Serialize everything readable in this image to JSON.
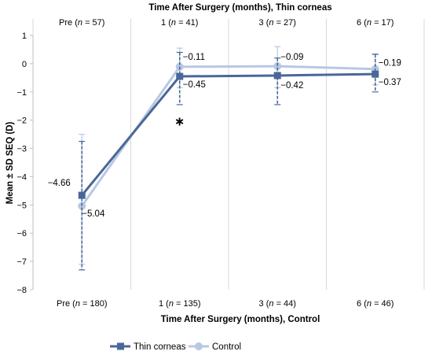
{
  "chart_data": {
    "type": "line",
    "title": "",
    "top_axis_title": "Time After Surgery (months), Thin corneas",
    "xlabel": "Time After Surgery (months), Control",
    "ylabel": "Mean ± SD SEQ (D)",
    "ylim": [
      -8,
      1
    ],
    "y_ticks": [
      "1",
      "0",
      "−1",
      "−2",
      "−3",
      "−4",
      "−5",
      "−6",
      "−7",
      "−8"
    ],
    "categories_top": [
      {
        "a": "Pre (",
        "n": "n",
        "b": " = 57)"
      },
      {
        "a": "1 (",
        "n": "n",
        "b": " = 41)"
      },
      {
        "a": "3 (",
        "n": "n",
        "b": " = 27)"
      },
      {
        "a": "6 (",
        "n": "n",
        "b": " = 17)"
      }
    ],
    "categories_bottom": [
      {
        "a": "Pre (",
        "n": "n",
        "b": " = 180)"
      },
      {
        "a": "1 (",
        "n": "n",
        "b": " = 135)"
      },
      {
        "a": "3 (",
        "n": "n",
        "b": " = 44)"
      },
      {
        "a": "6 (",
        "n": "n",
        "b": " = 46)"
      }
    ],
    "grid": "vertical",
    "legend_position": "bottom",
    "significance_marker": {
      "text": "∗",
      "category_index": 1,
      "y": -2.0
    },
    "series": [
      {
        "name": "Thin corneas",
        "color": "#4a6799",
        "marker": "square",
        "error_style": "dashed",
        "values": [
          -4.66,
          -0.45,
          -0.42,
          -0.37
        ],
        "labels": [
          "−4.66",
          "−0.45",
          "−0.42",
          "−0.37"
        ],
        "err_low": [
          -7.3,
          -1.45,
          -1.45,
          -1.0
        ],
        "err_high": [
          -2.75,
          0.4,
          0.2,
          0.33
        ]
      },
      {
        "name": "Control",
        "color": "#b8c8e2",
        "marker": "circle",
        "error_style": "solid",
        "values": [
          -5.04,
          -0.11,
          -0.09,
          -0.19
        ],
        "labels": [
          "−5.04",
          "−0.11",
          "−0.09",
          "−0.19"
        ],
        "err_low": [
          -7.1,
          -0.85,
          -0.85,
          -0.75
        ],
        "err_high": [
          -2.5,
          0.55,
          0.6,
          0.35
        ]
      }
    ]
  }
}
